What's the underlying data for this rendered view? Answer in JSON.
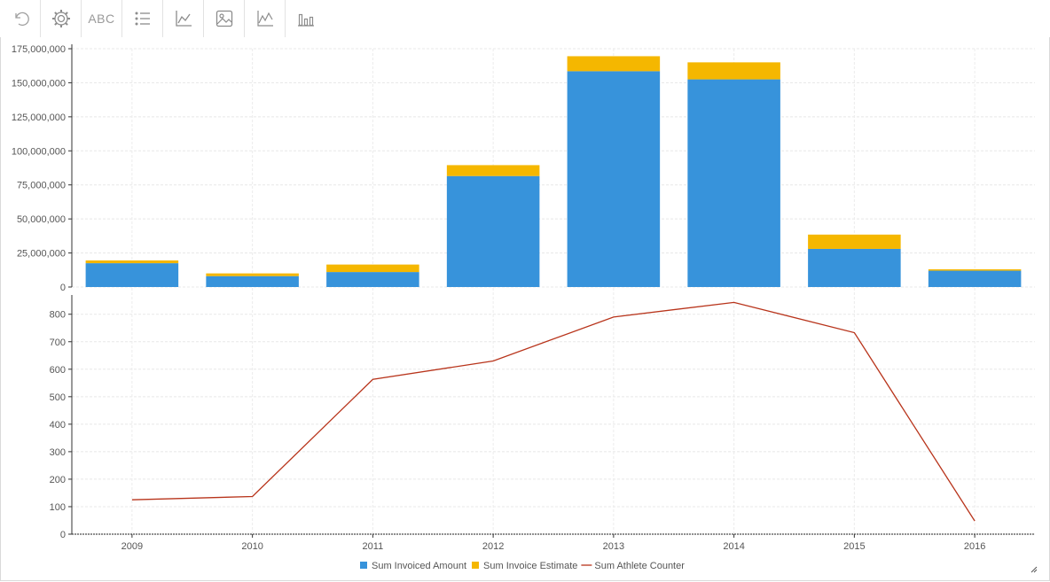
{
  "toolbar": {
    "items": [
      {
        "name": "undo-button",
        "icon": "undo-icon"
      },
      {
        "name": "settings-button",
        "icon": "gear-icon"
      },
      {
        "name": "text-button",
        "label": "ABC"
      },
      {
        "name": "legend-button",
        "icon": "list-icon"
      },
      {
        "name": "axes-button",
        "icon": "axes-icon"
      },
      {
        "name": "image-button",
        "icon": "image-icon"
      },
      {
        "name": "line-chart-button",
        "icon": "line-chart-icon"
      },
      {
        "name": "bar-chart-button",
        "icon": "bar-chart-icon"
      }
    ]
  },
  "chart_data": {
    "type": "bar",
    "categories": [
      "2009",
      "2010",
      "2011",
      "2012",
      "2013",
      "2014",
      "2015",
      "2016"
    ],
    "series": [
      {
        "name": "Sum Invoiced Amount",
        "type": "bar",
        "stack": "top",
        "color": "#3793db",
        "values": [
          17500000,
          8000000,
          11000000,
          81500000,
          158500000,
          152500000,
          28000000,
          12000000
        ]
      },
      {
        "name": "Sum Invoice Estimate",
        "type": "bar",
        "stack": "top",
        "color": "#f5b700",
        "values": [
          2000000,
          2000000,
          5500000,
          8000000,
          11000000,
          12500000,
          10500000,
          1000000
        ]
      },
      {
        "name": "Sum Athlete Counter",
        "type": "line",
        "panel": "bottom",
        "color": "#b8341b",
        "values": [
          125,
          137,
          563,
          630,
          790,
          843,
          733,
          48
        ]
      }
    ],
    "top_axis": {
      "ylim": [
        0,
        175000000
      ],
      "ticks": [
        0,
        25000000,
        50000000,
        75000000,
        100000000,
        125000000,
        150000000,
        175000000
      ],
      "tick_labels": [
        "0",
        "25,000,000",
        "50,000,000",
        "75,000,000",
        "100,000,000",
        "125,000,000",
        "150,000,000",
        "175,000,000"
      ]
    },
    "bottom_axis": {
      "ylim": [
        0,
        870
      ],
      "ticks": [
        0,
        100,
        200,
        300,
        400,
        500,
        600,
        700,
        800
      ],
      "tick_labels": [
        "0",
        "100",
        "200",
        "300",
        "400",
        "500",
        "600",
        "700",
        "800"
      ]
    },
    "grid": true,
    "legend_position": "bottom-center",
    "xlabel": "",
    "ylabel": "",
    "title": ""
  }
}
